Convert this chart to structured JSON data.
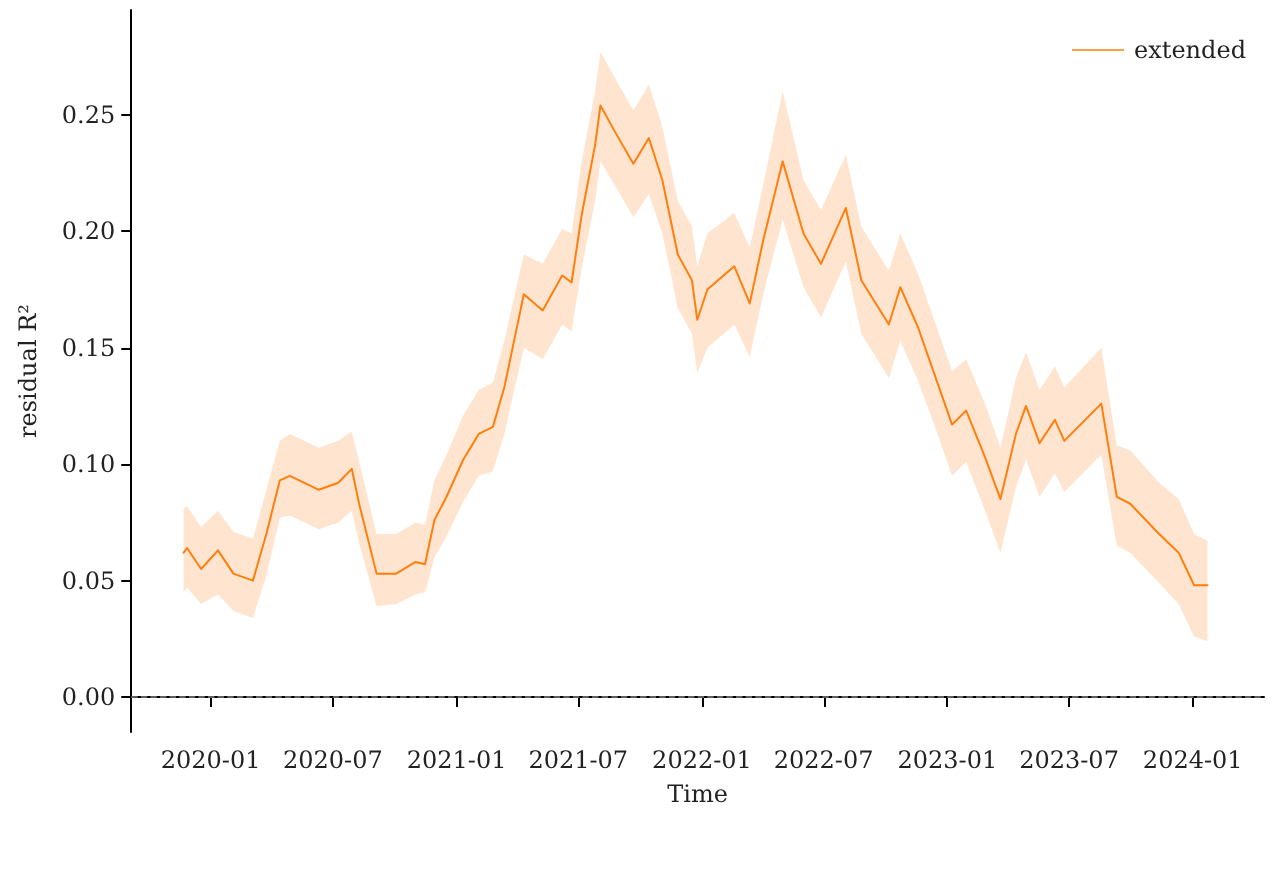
{
  "chart_data": {
    "type": "line",
    "xlabel": "Time",
    "ylabel": "residual R²",
    "xlim": [
      "2019-09-05",
      "2024-04-16"
    ],
    "ylim": [
      -0.015,
      0.295
    ],
    "xticks": [
      "2020-01",
      "2020-07",
      "2021-01",
      "2021-07",
      "2022-01",
      "2022-07",
      "2023-01",
      "2023-07",
      "2024-01"
    ],
    "yticks": [
      {
        "value": 0,
        "label": "0.00"
      },
      {
        "value": 0.05,
        "label": "0.05"
      },
      {
        "value": 0.1,
        "label": "0.10"
      },
      {
        "value": 0.15,
        "label": "0.15"
      },
      {
        "value": 0.2,
        "label": "0.20"
      },
      {
        "value": 0.25,
        "label": "0.25"
      }
    ],
    "x": [
      "2019-11-22",
      "2019-11-27",
      "2019-12-18",
      "2020-01-12",
      "2020-02-04",
      "2020-03-04",
      "2020-03-24",
      "2020-04-13",
      "2020-04-28",
      "2020-06-10",
      "2020-07-09",
      "2020-07-29",
      "2020-08-09",
      "2020-09-04",
      "2020-10-03",
      "2020-11-01",
      "2020-11-15",
      "2020-11-29",
      "2020-12-17",
      "2021-01-11",
      "2021-02-03",
      "2021-02-24",
      "2021-03-13",
      "2021-04-11",
      "2021-05-09",
      "2021-06-07",
      "2021-06-21",
      "2021-07-06",
      "2021-07-26",
      "2021-08-03",
      "2021-08-24",
      "2021-09-21",
      "2021-10-14",
      "2021-11-03",
      "2021-11-26",
      "2021-12-17",
      "2021-12-25",
      "2022-01-09",
      "2022-02-18",
      "2022-03-13",
      "2022-04-02",
      "2022-05-01",
      "2022-06-01",
      "2022-06-27",
      "2022-08-03",
      "2022-08-26",
      "2022-10-06",
      "2022-10-23",
      "2022-11-18",
      "2022-12-16",
      "2023-01-08",
      "2023-01-29",
      "2023-02-26",
      "2023-03-21",
      "2023-04-13",
      "2023-04-28",
      "2023-05-18",
      "2023-06-10",
      "2023-06-24",
      "2023-08-18",
      "2023-09-10",
      "2023-09-30",
      "2023-11-12",
      "2023-12-11",
      "2024-01-03",
      "2024-01-23"
    ],
    "series": [
      {
        "name": "extended",
        "color": "#ff7f0e",
        "values": [
          0.062,
          0.064,
          0.055,
          0.063,
          0.053,
          0.05,
          0.07,
          0.093,
          0.095,
          0.089,
          0.092,
          0.098,
          0.083,
          0.053,
          0.053,
          0.058,
          0.057,
          0.076,
          0.086,
          0.102,
          0.113,
          0.116,
          0.133,
          0.173,
          0.166,
          0.181,
          0.178,
          0.207,
          0.237,
          0.254,
          0.243,
          0.229,
          0.24,
          0.222,
          0.19,
          0.179,
          0.162,
          0.175,
          0.185,
          0.169,
          0.196,
          0.23,
          0.199,
          0.186,
          0.21,
          0.179,
          0.16,
          0.176,
          0.159,
          0.136,
          0.117,
          0.123,
          0.103,
          0.085,
          0.113,
          0.125,
          0.109,
          0.119,
          0.11,
          0.126,
          0.086,
          0.083,
          0.07,
          0.062,
          0.048,
          0.048
        ],
        "lower": [
          0.045,
          0.047,
          0.04,
          0.044,
          0.037,
          0.034,
          0.052,
          0.077,
          0.078,
          0.072,
          0.075,
          0.08,
          0.066,
          0.039,
          0.04,
          0.044,
          0.045,
          0.06,
          0.069,
          0.084,
          0.095,
          0.097,
          0.113,
          0.15,
          0.145,
          0.16,
          0.157,
          0.184,
          0.213,
          0.23,
          0.22,
          0.206,
          0.216,
          0.199,
          0.167,
          0.156,
          0.139,
          0.15,
          0.16,
          0.146,
          0.173,
          0.205,
          0.176,
          0.163,
          0.187,
          0.156,
          0.137,
          0.153,
          0.136,
          0.114,
          0.095,
          0.101,
          0.08,
          0.062,
          0.09,
          0.102,
          0.086,
          0.096,
          0.088,
          0.104,
          0.065,
          0.062,
          0.049,
          0.04,
          0.026,
          0.024
        ],
        "upper": [
          0.081,
          0.082,
          0.073,
          0.08,
          0.071,
          0.068,
          0.089,
          0.11,
          0.113,
          0.107,
          0.11,
          0.114,
          0.101,
          0.07,
          0.07,
          0.075,
          0.074,
          0.093,
          0.104,
          0.121,
          0.132,
          0.135,
          0.153,
          0.19,
          0.186,
          0.201,
          0.199,
          0.23,
          0.26,
          0.277,
          0.266,
          0.252,
          0.263,
          0.245,
          0.213,
          0.202,
          0.185,
          0.199,
          0.208,
          0.193,
          0.22,
          0.26,
          0.222,
          0.209,
          0.233,
          0.202,
          0.183,
          0.199,
          0.182,
          0.159,
          0.14,
          0.145,
          0.126,
          0.107,
          0.137,
          0.148,
          0.132,
          0.142,
          0.133,
          0.15,
          0.108,
          0.106,
          0.092,
          0.085,
          0.07,
          0.067
        ]
      }
    ],
    "ref_lines": [
      {
        "axis": "y",
        "value": 0,
        "color": "#808080",
        "line_style": "dashed"
      }
    ],
    "legend": "top right",
    "grid": false,
    "marker": "none",
    "line_style": "solid"
  }
}
